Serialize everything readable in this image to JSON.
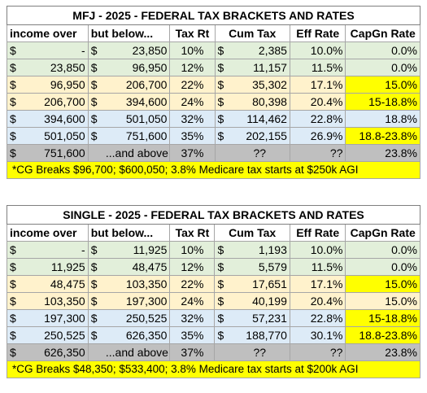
{
  "tables": [
    {
      "title": "MFJ - 2025 - FEDERAL TAX BRACKETS AND RATES",
      "headers": {
        "over": "income over",
        "below": "but below...",
        "rate": "Tax Rt",
        "cum": "Cum Tax",
        "eff": "Eff Rate",
        "capgn": "CapGn Rate"
      },
      "rows": [
        {
          "band": "green",
          "c1": "$",
          "over": "-",
          "c2": "$",
          "below": "23,850",
          "rate": "10%",
          "c3": "$",
          "cum": "2,385",
          "eff": "10.0%",
          "capgn": "0.0%",
          "capgn_hl": false
        },
        {
          "band": "green",
          "c1": "$",
          "over": "23,850",
          "c2": "$",
          "below": "96,950",
          "rate": "12%",
          "c3": "$",
          "cum": "11,157",
          "eff": "11.5%",
          "capgn": "0.0%",
          "capgn_hl": false
        },
        {
          "band": "orange",
          "c1": "$",
          "over": "96,950",
          "c2": "$",
          "below": "206,700",
          "rate": "22%",
          "c3": "$",
          "cum": "35,302",
          "eff": "17.1%",
          "capgn": "15.0%",
          "capgn_hl": true
        },
        {
          "band": "orange",
          "c1": "$",
          "over": "206,700",
          "c2": "$",
          "below": "394,600",
          "rate": "24%",
          "c3": "$",
          "cum": "80,398",
          "eff": "20.4%",
          "capgn": "15-18.8%",
          "capgn_hl": true
        },
        {
          "band": "blue",
          "c1": "$",
          "over": "394,600",
          "c2": "$",
          "below": "501,050",
          "rate": "32%",
          "c3": "$",
          "cum": "114,462",
          "eff": "22.8%",
          "capgn": "18.8%",
          "capgn_hl": false
        },
        {
          "band": "blue",
          "c1": "$",
          "over": "501,050",
          "c2": "$",
          "below": "751,600",
          "rate": "35%",
          "c3": "$",
          "cum": "202,155",
          "eff": "26.9%",
          "capgn": "18.8-23.8%",
          "capgn_hl": true
        },
        {
          "band": "gray",
          "c1": "$",
          "over": "751,600",
          "c2": "",
          "below": "...and above",
          "rate": "37%",
          "c3": "",
          "cum": "??",
          "eff": "??",
          "capgn": "23.8%",
          "capgn_hl": false
        }
      ],
      "note": "*CG Breaks $96,700; $600,050; 3.8% Medicare tax starts at $250k AGI"
    },
    {
      "title": "SINGLE - 2025 - FEDERAL TAX BRACKETS AND RATES",
      "headers": {
        "over": "income over",
        "below": "but below...",
        "rate": "Tax Rt",
        "cum": "Cum Tax",
        "eff": "Eff Rate",
        "capgn": "CapGn Rate"
      },
      "rows": [
        {
          "band": "green",
          "c1": "$",
          "over": "-",
          "c2": "$",
          "below": "11,925",
          "rate": "10%",
          "c3": "$",
          "cum": "1,193",
          "eff": "10.0%",
          "capgn": "0.0%",
          "capgn_hl": false
        },
        {
          "band": "green",
          "c1": "$",
          "over": "11,925",
          "c2": "$",
          "below": "48,475",
          "rate": "12%",
          "c3": "$",
          "cum": "5,579",
          "eff": "11.5%",
          "capgn": "0.0%",
          "capgn_hl": false
        },
        {
          "band": "orange",
          "c1": "$",
          "over": "48,475",
          "c2": "$",
          "below": "103,350",
          "rate": "22%",
          "c3": "$",
          "cum": "17,651",
          "eff": "17.1%",
          "capgn": "15.0%",
          "capgn_hl": true
        },
        {
          "band": "orange",
          "c1": "$",
          "over": "103,350",
          "c2": "$",
          "below": "197,300",
          "rate": "24%",
          "c3": "$",
          "cum": "40,199",
          "eff": "20.4%",
          "capgn": "15.0%",
          "capgn_hl": false
        },
        {
          "band": "blue",
          "c1": "$",
          "over": "197,300",
          "c2": "$",
          "below": "250,525",
          "rate": "32%",
          "c3": "$",
          "cum": "57,231",
          "eff": "22.8%",
          "capgn": "15-18.8%",
          "capgn_hl": true
        },
        {
          "band": "blue",
          "c1": "$",
          "over": "250,525",
          "c2": "$",
          "below": "626,350",
          "rate": "35%",
          "c3": "$",
          "cum": "188,770",
          "eff": "30.1%",
          "capgn": "18.8-23.8%",
          "capgn_hl": true
        },
        {
          "band": "gray",
          "c1": "$",
          "over": "626,350",
          "c2": "",
          "below": "...and above",
          "rate": "37%",
          "c3": "",
          "cum": "??",
          "eff": "??",
          "capgn": "23.8%",
          "capgn_hl": false
        }
      ],
      "note": "*CG Breaks $48,350; $533,400; 3.8% Medicare tax starts at $200k AGI"
    }
  ],
  "colors": {
    "green": "#e2efda",
    "orange": "#fff2cc",
    "blue": "#ddebf7",
    "gray": "#bfbfbf",
    "highlight": "#ffff00"
  }
}
